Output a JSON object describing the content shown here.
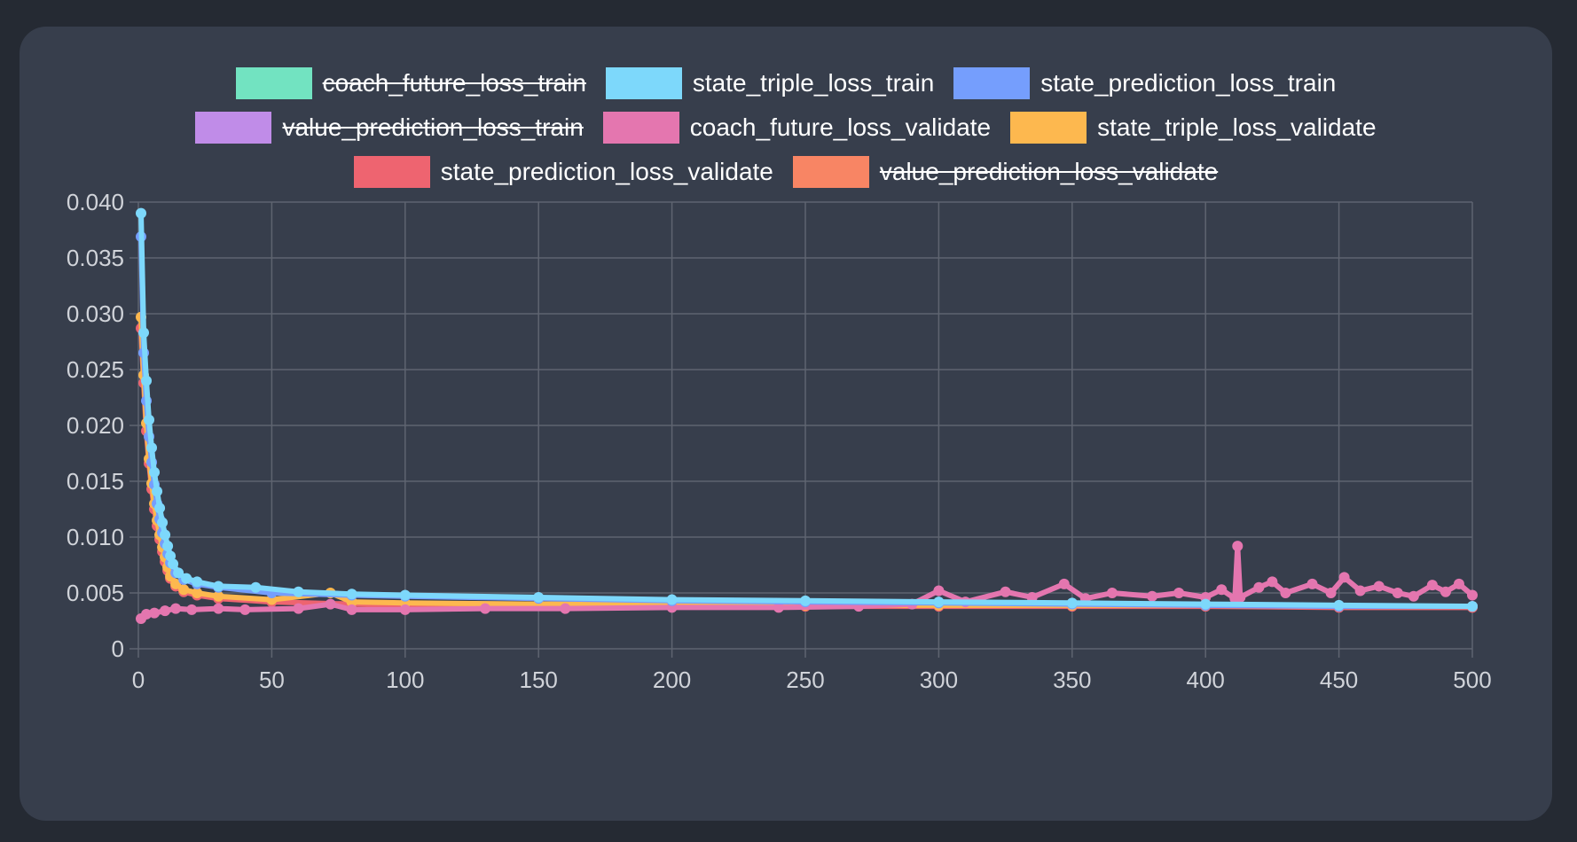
{
  "chart_data": {
    "type": "line",
    "title": "",
    "xlabel": "",
    "ylabel": "",
    "xlim": [
      0,
      500
    ],
    "ylim": [
      0,
      0.04
    ],
    "x_ticks": [
      "0",
      "50",
      "100",
      "150",
      "200",
      "250",
      "300",
      "350",
      "400",
      "450",
      "500"
    ],
    "y_ticks": [
      "0",
      "0.005",
      "0.010",
      "0.015",
      "0.020",
      "0.025",
      "0.030",
      "0.035",
      "0.040"
    ],
    "grid": true,
    "legend_position": "top",
    "series": [
      {
        "name": "coach_future_loss_train",
        "color": "#72e3c1",
        "hidden": true,
        "points": []
      },
      {
        "name": "state_triple_loss_train",
        "color": "#7dd8fb",
        "hidden": false,
        "points": [
          [
            1,
            0.039
          ],
          [
            2,
            0.0283
          ],
          [
            3,
            0.024
          ],
          [
            4,
            0.0205
          ],
          [
            5,
            0.018
          ],
          [
            6,
            0.0158
          ],
          [
            7,
            0.0141
          ],
          [
            8,
            0.0126
          ],
          [
            9,
            0.0113
          ],
          [
            10,
            0.0102
          ],
          [
            11,
            0.0092
          ],
          [
            12,
            0.0083
          ],
          [
            13,
            0.0076
          ],
          [
            15,
            0.0068
          ],
          [
            18,
            0.0063
          ],
          [
            22,
            0.006
          ],
          [
            30,
            0.0056
          ],
          [
            44,
            0.0055
          ],
          [
            60,
            0.0051
          ],
          [
            80,
            0.0049
          ],
          [
            100,
            0.0048
          ],
          [
            150,
            0.0046
          ],
          [
            200,
            0.0044
          ],
          [
            250,
            0.0043
          ],
          [
            300,
            0.0042
          ],
          [
            350,
            0.0041
          ],
          [
            400,
            0.004
          ],
          [
            450,
            0.0039
          ],
          [
            500,
            0.0038
          ]
        ]
      },
      {
        "name": "state_prediction_loss_train",
        "color": "#759efd",
        "hidden": false,
        "points": [
          [
            1,
            0.0369
          ],
          [
            2,
            0.0265
          ],
          [
            3,
            0.0222
          ],
          [
            4,
            0.019
          ],
          [
            5,
            0.0167
          ],
          [
            6,
            0.0147
          ],
          [
            7,
            0.013
          ],
          [
            8,
            0.0116
          ],
          [
            9,
            0.0104
          ],
          [
            10,
            0.0094
          ],
          [
            11,
            0.0085
          ],
          [
            12,
            0.0077
          ],
          [
            14,
            0.0068
          ],
          [
            17,
            0.0062
          ],
          [
            22,
            0.0058
          ],
          [
            30,
            0.0055
          ],
          [
            50,
            0.005
          ],
          [
            80,
            0.0048
          ],
          [
            100,
            0.0047
          ],
          [
            150,
            0.0045
          ],
          [
            200,
            0.0043
          ],
          [
            250,
            0.0042
          ],
          [
            300,
            0.0041
          ],
          [
            350,
            0.004
          ],
          [
            400,
            0.0039
          ],
          [
            450,
            0.0038
          ],
          [
            500,
            0.0038
          ]
        ]
      },
      {
        "name": "value_prediction_loss_train",
        "color": "#c08ce8",
        "hidden": true,
        "points": []
      },
      {
        "name": "coach_future_loss_validate",
        "color": "#e476af",
        "hidden": false,
        "points": [
          [
            1,
            0.0027
          ],
          [
            3,
            0.0031
          ],
          [
            6,
            0.0032
          ],
          [
            10,
            0.0034
          ],
          [
            14,
            0.0036
          ],
          [
            20,
            0.0035
          ],
          [
            30,
            0.0036
          ],
          [
            40,
            0.0035
          ],
          [
            60,
            0.0036
          ],
          [
            72,
            0.004
          ],
          [
            80,
            0.0035
          ],
          [
            100,
            0.0035
          ],
          [
            130,
            0.0036
          ],
          [
            160,
            0.0036
          ],
          [
            200,
            0.0037
          ],
          [
            240,
            0.0037
          ],
          [
            270,
            0.0038
          ],
          [
            290,
            0.004
          ],
          [
            300,
            0.0052
          ],
          [
            310,
            0.0042
          ],
          [
            325,
            0.0051
          ],
          [
            335,
            0.0046
          ],
          [
            347,
            0.0058
          ],
          [
            355,
            0.0045
          ],
          [
            365,
            0.005
          ],
          [
            380,
            0.0047
          ],
          [
            390,
            0.005
          ],
          [
            400,
            0.0046
          ],
          [
            406,
            0.0053
          ],
          [
            411,
            0.0045
          ],
          [
            412,
            0.0092
          ],
          [
            413,
            0.0046
          ],
          [
            420,
            0.0055
          ],
          [
            425,
            0.006
          ],
          [
            430,
            0.005
          ],
          [
            440,
            0.0058
          ],
          [
            447,
            0.005
          ],
          [
            452,
            0.0064
          ],
          [
            458,
            0.0052
          ],
          [
            465,
            0.0056
          ],
          [
            472,
            0.005
          ],
          [
            478,
            0.0047
          ],
          [
            485,
            0.0057
          ],
          [
            490,
            0.0051
          ],
          [
            495,
            0.0058
          ],
          [
            500,
            0.0048
          ]
        ]
      },
      {
        "name": "state_triple_loss_validate",
        "color": "#fdb84f",
        "hidden": false,
        "points": [
          [
            1,
            0.0297
          ],
          [
            2,
            0.0245
          ],
          [
            3,
            0.0202
          ],
          [
            4,
            0.017
          ],
          [
            5,
            0.0148
          ],
          [
            6,
            0.013
          ],
          [
            7,
            0.0115
          ],
          [
            8,
            0.0102
          ],
          [
            9,
            0.0091
          ],
          [
            10,
            0.0082
          ],
          [
            11,
            0.0073
          ],
          [
            12,
            0.0065
          ],
          [
            14,
            0.0058
          ],
          [
            17,
            0.0053
          ],
          [
            22,
            0.005
          ],
          [
            30,
            0.0047
          ],
          [
            50,
            0.0044
          ],
          [
            72,
            0.005
          ],
          [
            80,
            0.0042
          ],
          [
            100,
            0.0041
          ],
          [
            150,
            0.004
          ],
          [
            200,
            0.004
          ],
          [
            250,
            0.0039
          ],
          [
            300,
            0.0039
          ],
          [
            350,
            0.0039
          ],
          [
            400,
            0.0039
          ],
          [
            450,
            0.0038
          ],
          [
            500,
            0.0038
          ]
        ]
      },
      {
        "name": "state_prediction_loss_validate",
        "color": "#ee6470",
        "hidden": false,
        "points": [
          [
            1,
            0.0287
          ],
          [
            2,
            0.0238
          ],
          [
            3,
            0.0195
          ],
          [
            4,
            0.0166
          ],
          [
            5,
            0.0143
          ],
          [
            6,
            0.0125
          ],
          [
            7,
            0.011
          ],
          [
            8,
            0.0098
          ],
          [
            9,
            0.0087
          ],
          [
            10,
            0.0078
          ],
          [
            11,
            0.007
          ],
          [
            12,
            0.0063
          ],
          [
            14,
            0.0056
          ],
          [
            17,
            0.0051
          ],
          [
            22,
            0.0048
          ],
          [
            30,
            0.0045
          ],
          [
            50,
            0.0042
          ],
          [
            80,
            0.004
          ],
          [
            100,
            0.0039
          ],
          [
            150,
            0.0039
          ],
          [
            200,
            0.0038
          ],
          [
            250,
            0.0038
          ],
          [
            300,
            0.0038
          ],
          [
            350,
            0.0038
          ],
          [
            400,
            0.0038
          ],
          [
            450,
            0.0037
          ],
          [
            500,
            0.0037
          ]
        ]
      },
      {
        "name": "value_prediction_loss_validate",
        "color": "#f88564",
        "hidden": true,
        "points": []
      }
    ]
  }
}
